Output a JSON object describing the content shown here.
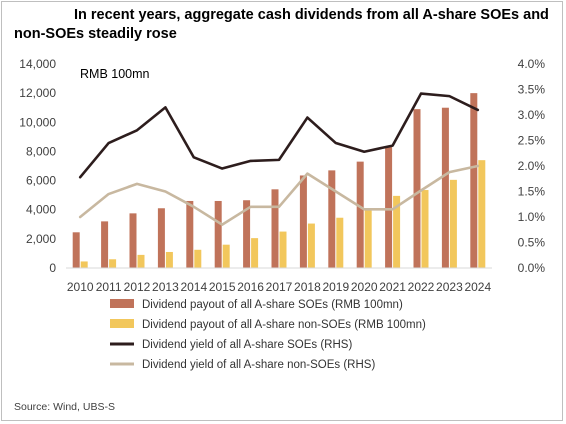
{
  "title_line1": "In recent years, aggregate cash dividends from all A-share SOEs and",
  "title_line2": "non-SOEs steadily rose",
  "source": "Source: Wind, UBS-S",
  "chart_data": {
    "type": "bar",
    "title": "In recent years, aggregate cash dividends from all A-share SOEs and non-SOEs steadily rose",
    "unit_label": "RMB 100mn",
    "categories": [
      "2010",
      "2011",
      "2012",
      "2013",
      "2014",
      "2015",
      "2016",
      "2017",
      "2018",
      "2019",
      "2020",
      "2021",
      "2022",
      "2023",
      "2024"
    ],
    "y_left": {
      "ylim": [
        0,
        14000
      ],
      "ticks": [
        "0",
        "2,000",
        "4,000",
        "6,000",
        "8,000",
        "10,000",
        "12,000",
        "14,000"
      ]
    },
    "y_right": {
      "ylim": [
        0,
        4.0
      ],
      "ticks": [
        "0.0%",
        "0.5%",
        "1.0%",
        "1.5%",
        "2.0%",
        "2.5%",
        "3.0%",
        "3.5%",
        "4.0%"
      ]
    },
    "series": [
      {
        "name": "Dividend payout of all A-share SOEs (RMB 100mn)",
        "kind": "bar",
        "axis": "left",
        "color": "#c0735a",
        "values": [
          2450,
          3200,
          3750,
          4100,
          4600,
          4600,
          4650,
          5400,
          6350,
          6700,
          7300,
          8300,
          10900,
          11000,
          12000
        ]
      },
      {
        "name": "Dividend payout of all A-share non-SOEs (RMB 100mn)",
        "kind": "bar",
        "axis": "left",
        "color": "#f2c75c",
        "values": [
          450,
          600,
          900,
          1100,
          1250,
          1600,
          2050,
          2500,
          3050,
          3450,
          4100,
          4950,
          5350,
          6050,
          7400
        ]
      },
      {
        "name": "Dividend yield of all A-share SOEs (RHS)",
        "kind": "line",
        "axis": "right",
        "color": "#2d1d1d",
        "values": [
          1.78,
          2.45,
          2.7,
          3.15,
          2.17,
          1.95,
          2.1,
          2.12,
          2.95,
          2.45,
          2.28,
          2.4,
          3.42,
          3.37,
          3.1
        ]
      },
      {
        "name": "Dividend yield of all A-share non-SOEs (RHS)",
        "kind": "line",
        "axis": "right",
        "color": "#c8b8a0",
        "values": [
          1.0,
          1.45,
          1.65,
          1.5,
          1.2,
          0.85,
          1.2,
          1.2,
          1.85,
          1.5,
          1.15,
          1.15,
          1.52,
          1.88,
          2.0
        ]
      }
    ]
  }
}
